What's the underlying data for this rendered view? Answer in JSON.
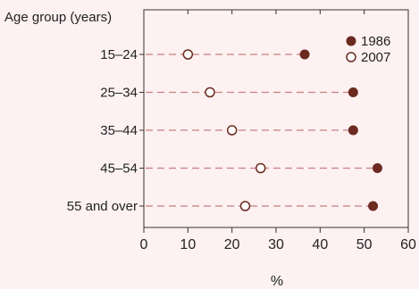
{
  "chart_data": {
    "type": "scatter",
    "style": "dot-plot",
    "orientation": "horizontal",
    "y_axis_title": "Age group (years)",
    "xlabel": "%",
    "categories": [
      "15–24",
      "25–34",
      "35–44",
      "45–54",
      "55 and over"
    ],
    "series": [
      {
        "name": "1986",
        "values": [
          36.5,
          47.5,
          47.5,
          53,
          52
        ],
        "color": "#6b2a1f",
        "marker": "filled-circle"
      },
      {
        "name": "2007",
        "values": [
          10,
          15,
          20,
          26.5,
          23
        ],
        "color": "#6b2a1f",
        "marker": "open-circle"
      }
    ],
    "xlim": [
      0,
      60
    ],
    "xticks": [
      0,
      10,
      20,
      30,
      40,
      50,
      60
    ],
    "xtick_labels": [
      "0",
      "10",
      "20",
      "30",
      "40",
      "50",
      "60"
    ],
    "grid": false,
    "connectors": "dashed",
    "connector_color": "#c98080",
    "legend_position": "top-right",
    "background_color": "#fdf1f2"
  }
}
